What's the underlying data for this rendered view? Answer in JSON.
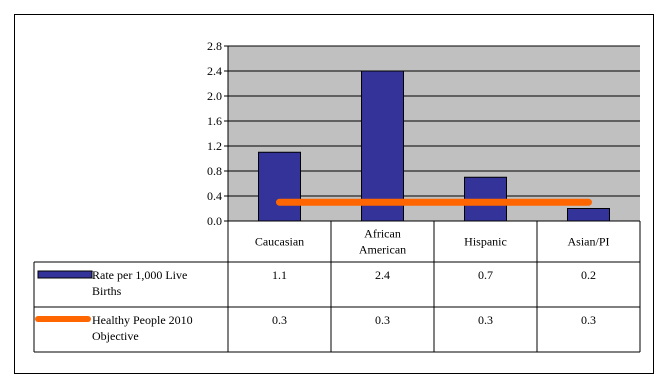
{
  "chart_data": {
    "type": "bar",
    "categories": [
      "Caucasian",
      "African American",
      "Hispanic",
      "Asian/PI"
    ],
    "category_lines": [
      [
        "Caucasian"
      ],
      [
        "African",
        "American"
      ],
      [
        "Hispanic"
      ],
      [
        "Asian/PI"
      ]
    ],
    "series": [
      {
        "name": "Rate per 1,000 Live Births",
        "name_lines": [
          "Rate per 1,000 Live",
          "Births"
        ],
        "kind": "bar",
        "color": "#333399",
        "values": [
          1.1,
          2.4,
          0.7,
          0.2
        ],
        "table_values": [
          "1.1",
          "2.4",
          "0.7",
          "0.2"
        ]
      },
      {
        "name": "Healthy People 2010 Objective",
        "name_lines": [
          "Healthy People 2010",
          "Objective"
        ],
        "kind": "line",
        "color": "#ff6600",
        "values": [
          0.3,
          0.3,
          0.3,
          0.3
        ],
        "table_values": [
          "0.3",
          "0.3",
          "0.3",
          "0.3"
        ]
      }
    ],
    "ylim": [
      0,
      2.8
    ],
    "yticks": [
      "0.0",
      "0.4",
      "0.8",
      "1.2",
      "1.6",
      "2.0",
      "2.4",
      "2.8"
    ],
    "ytick_values": [
      0,
      0.4,
      0.8,
      1.2,
      1.6,
      2.0,
      2.4,
      2.8
    ],
    "grid": true,
    "plot_background": "#c0c0c0",
    "legend": "data-table"
  }
}
